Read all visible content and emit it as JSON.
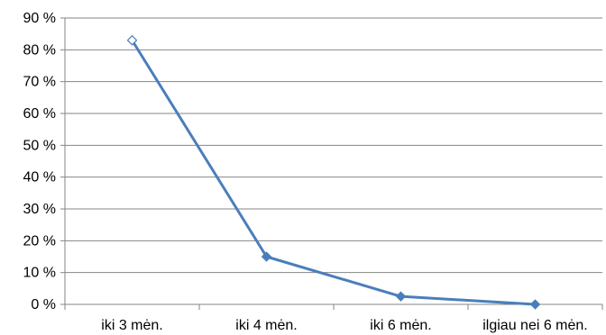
{
  "chart_data": {
    "type": "line",
    "categories": [
      "iki 3 mėn.",
      "iki 4 mėn.",
      "iki 6 mėn.",
      "ilgiau nei 6 mėn."
    ],
    "series": [
      {
        "values": [
          83,
          15,
          2.5,
          0
        ]
      }
    ],
    "yticks": [
      "0 %",
      "10 %",
      "20 %",
      "30 %",
      "40 %",
      "50 %",
      "60 %",
      "70 %",
      "80 %",
      "90 %"
    ],
    "ylim": [
      0,
      90
    ],
    "grid": true,
    "line_color": "#4a7ebb",
    "marker_color": "#4a7ebb",
    "marker": "diamond",
    "gridline_color": "#868686"
  }
}
